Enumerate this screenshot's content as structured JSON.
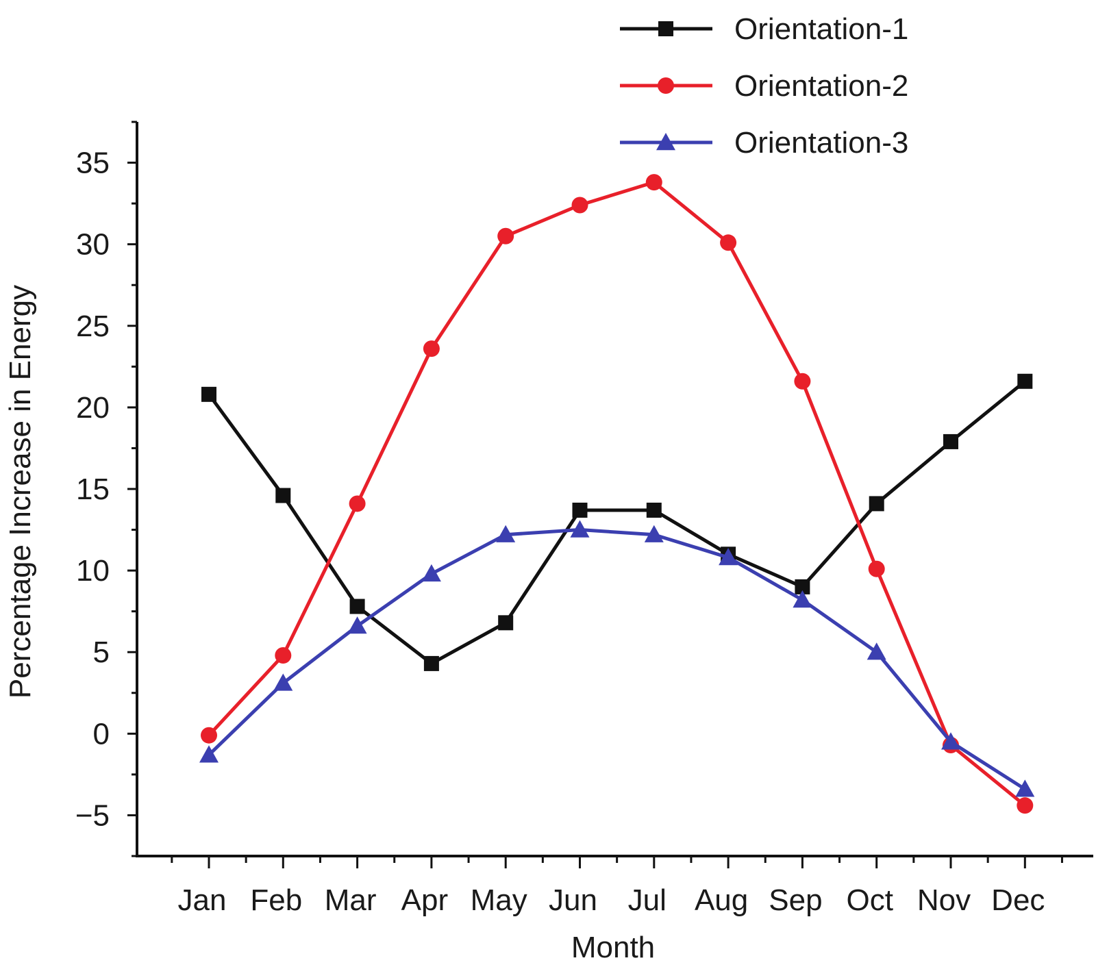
{
  "chart_data": {
    "type": "line",
    "title": "",
    "xlabel": "Month",
    "ylabel": "Percentage Increase in Energy",
    "categories": [
      "Jan",
      "Feb",
      "Mar",
      "Apr",
      "May",
      "Jun",
      "Jul",
      "Aug",
      "Sep",
      "Oct",
      "Nov",
      "Dec"
    ],
    "yticks": [
      "35",
      "30",
      "25",
      "20",
      "15",
      "10",
      "5",
      "0",
      "−5"
    ],
    "ylim": [
      -7.5,
      37.5
    ],
    "grid": false,
    "legend_position": "top-right",
    "series": [
      {
        "name": "Orientation-1",
        "color": "#111111",
        "marker": "square",
        "values": [
          20.8,
          14.6,
          7.8,
          4.3,
          6.8,
          13.7,
          13.7,
          11.0,
          9.0,
          14.1,
          17.9,
          21.6
        ]
      },
      {
        "name": "Orientation-2",
        "color": "#e8202a",
        "marker": "circle",
        "values": [
          -0.1,
          4.8,
          14.1,
          23.6,
          30.5,
          32.4,
          33.8,
          30.1,
          21.6,
          10.1,
          -0.7,
          -4.4
        ]
      },
      {
        "name": "Orientation-3",
        "color": "#3b3fb0",
        "marker": "triangle",
        "values": [
          -1.3,
          3.1,
          6.6,
          9.8,
          12.2,
          12.5,
          12.2,
          10.8,
          8.2,
          5.0,
          -0.5,
          -3.4
        ]
      }
    ]
  }
}
